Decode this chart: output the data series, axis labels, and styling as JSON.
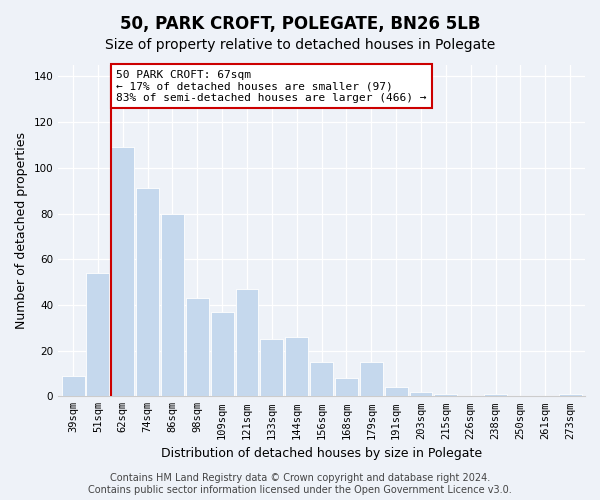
{
  "title": "50, PARK CROFT, POLEGATE, BN26 5LB",
  "subtitle": "Size of property relative to detached houses in Polegate",
  "xlabel": "Distribution of detached houses by size in Polegate",
  "ylabel": "Number of detached properties",
  "categories": [
    "39sqm",
    "51sqm",
    "62sqm",
    "74sqm",
    "86sqm",
    "98sqm",
    "109sqm",
    "121sqm",
    "133sqm",
    "144sqm",
    "156sqm",
    "168sqm",
    "179sqm",
    "191sqm",
    "203sqm",
    "215sqm",
    "226sqm",
    "238sqm",
    "250sqm",
    "261sqm",
    "273sqm"
  ],
  "values": [
    9,
    54,
    109,
    91,
    80,
    43,
    37,
    47,
    25,
    26,
    15,
    8,
    15,
    4,
    2,
    1,
    0,
    1,
    0,
    0,
    1
  ],
  "bar_color": "#c5d8ed",
  "vline_index": 2,
  "vline_color": "#cc0000",
  "annotation_text": "50 PARK CROFT: 67sqm\n← 17% of detached houses are smaller (97)\n83% of semi-detached houses are larger (466) →",
  "annotation_box_facecolor": "#ffffff",
  "annotation_box_edgecolor": "#cc0000",
  "ylim": [
    0,
    145
  ],
  "yticks": [
    0,
    20,
    40,
    60,
    80,
    100,
    120,
    140
  ],
  "footer_line1": "Contains HM Land Registry data © Crown copyright and database right 2024.",
  "footer_line2": "Contains public sector information licensed under the Open Government Licence v3.0.",
  "bg_color": "#eef2f8",
  "grid_color": "#ffffff",
  "spine_color": "#cccccc",
  "title_fontsize": 12,
  "subtitle_fontsize": 10,
  "axis_label_fontsize": 9,
  "tick_fontsize": 7.5,
  "annotation_fontsize": 8,
  "footer_fontsize": 7
}
